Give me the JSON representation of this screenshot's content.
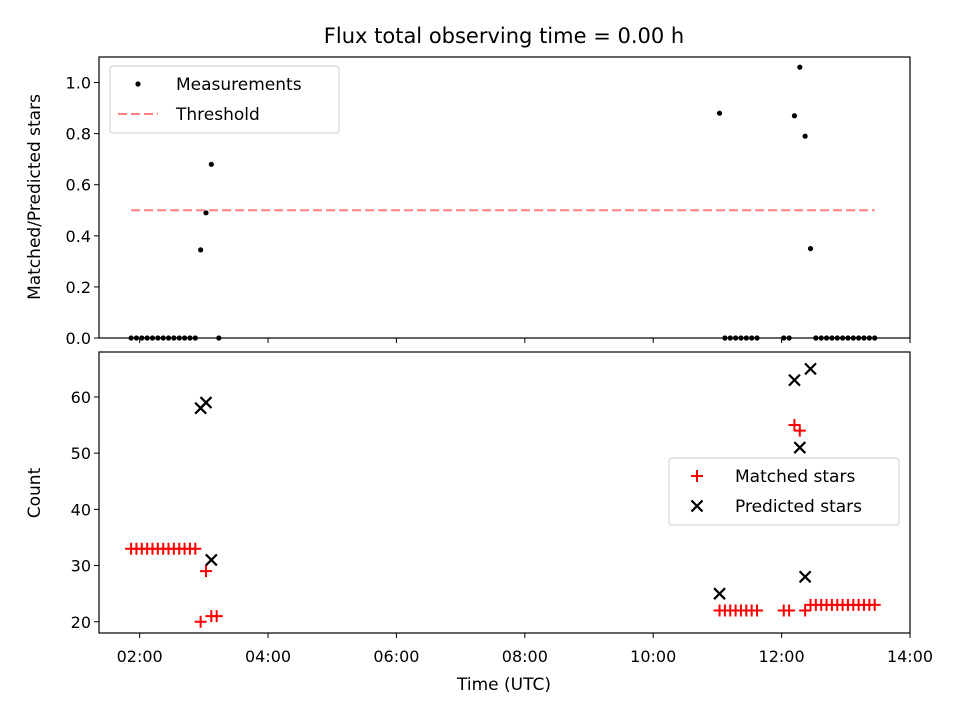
{
  "figure": {
    "title": "Flux total observing time = 0.00 h"
  },
  "chart_data": [
    {
      "type": "scatter",
      "panel": "top",
      "title": "Flux total observing time = 0.00 h",
      "xlabel": "",
      "ylabel": "Matched/Predicted stars",
      "xlim": [
        "01:22",
        "14:00"
      ],
      "ylim": [
        0,
        1.1
      ],
      "x_tick_labels": [],
      "y_ticks": [
        0.0,
        0.2,
        0.4,
        0.6,
        0.8,
        1.0
      ],
      "y_tick_labels": [
        "0.0",
        "0.2",
        "0.4",
        "0.6",
        "0.8",
        "1.0"
      ],
      "legend": {
        "position": "top-left"
      },
      "series": [
        {
          "name": "Measurements",
          "kind": "points",
          "color": "#000000",
          "marker": "dot",
          "points": [
            [
              "01:52",
              0.0
            ],
            [
              "01:57",
              0.0
            ],
            [
              "02:02",
              0.0
            ],
            [
              "02:07",
              0.0
            ],
            [
              "02:12",
              0.0
            ],
            [
              "02:17",
              0.0
            ],
            [
              "02:22",
              0.0
            ],
            [
              "02:27",
              0.0
            ],
            [
              "02:32",
              0.0
            ],
            [
              "02:37",
              0.0
            ],
            [
              "02:42",
              0.0
            ],
            [
              "02:47",
              0.0
            ],
            [
              "02:52",
              0.0
            ],
            [
              "02:57",
              0.345
            ],
            [
              "03:02",
              0.49
            ],
            [
              "03:07",
              0.68
            ],
            [
              "03:14",
              0.0
            ],
            [
              "11:02",
              0.88
            ],
            [
              "11:07",
              0.0
            ],
            [
              "11:12",
              0.0
            ],
            [
              "11:17",
              0.0
            ],
            [
              "11:22",
              0.0
            ],
            [
              "11:27",
              0.0
            ],
            [
              "11:32",
              0.0
            ],
            [
              "11:37",
              0.0
            ],
            [
              "12:02",
              0.0
            ],
            [
              "12:07",
              0.0
            ],
            [
              "12:12",
              0.87
            ],
            [
              "12:17",
              1.06
            ],
            [
              "12:22",
              0.79
            ],
            [
              "12:27",
              0.35
            ],
            [
              "12:32",
              0.0
            ],
            [
              "12:37",
              0.0
            ],
            [
              "12:42",
              0.0
            ],
            [
              "12:47",
              0.0
            ],
            [
              "12:52",
              0.0
            ],
            [
              "12:57",
              0.0
            ],
            [
              "13:02",
              0.0
            ],
            [
              "13:07",
              0.0
            ],
            [
              "13:12",
              0.0
            ],
            [
              "13:17",
              0.0
            ],
            [
              "13:22",
              0.0
            ],
            [
              "13:27",
              0.0
            ]
          ]
        },
        {
          "name": "Threshold",
          "kind": "line",
          "color": "#ff8080",
          "dash": "dashed",
          "points": [
            [
              "01:52",
              0.5
            ],
            [
              "13:27",
              0.5
            ]
          ]
        }
      ]
    },
    {
      "type": "scatter",
      "panel": "bottom",
      "xlabel": "Time (UTC)",
      "ylabel": "Count",
      "xlim": [
        "01:22",
        "14:00"
      ],
      "ylim": [
        18,
        68
      ],
      "x_ticks": [
        "02:00",
        "04:00",
        "06:00",
        "08:00",
        "10:00",
        "12:00",
        "14:00"
      ],
      "x_tick_labels": [
        "02:00",
        "04:00",
        "06:00",
        "08:00",
        "10:00",
        "12:00",
        "14:00"
      ],
      "y_ticks": [
        20,
        30,
        40,
        50,
        60
      ],
      "y_tick_labels": [
        "20",
        "30",
        "40",
        "50",
        "60"
      ],
      "legend": {
        "position": "center-right"
      },
      "series": [
        {
          "name": "Matched stars",
          "kind": "points",
          "color": "#ff0000",
          "marker": "plus",
          "points": [
            [
              "01:52",
              33
            ],
            [
              "01:57",
              33
            ],
            [
              "02:02",
              33
            ],
            [
              "02:07",
              33
            ],
            [
              "02:12",
              33
            ],
            [
              "02:17",
              33
            ],
            [
              "02:22",
              33
            ],
            [
              "02:27",
              33
            ],
            [
              "02:32",
              33
            ],
            [
              "02:37",
              33
            ],
            [
              "02:42",
              33
            ],
            [
              "02:47",
              33
            ],
            [
              "02:52",
              33
            ],
            [
              "02:57",
              20
            ],
            [
              "03:02",
              29
            ],
            [
              "03:07",
              21
            ],
            [
              "03:12",
              21
            ],
            [
              "11:02",
              22
            ],
            [
              "11:07",
              22
            ],
            [
              "11:12",
              22
            ],
            [
              "11:17",
              22
            ],
            [
              "11:22",
              22
            ],
            [
              "11:27",
              22
            ],
            [
              "11:32",
              22
            ],
            [
              "11:37",
              22
            ],
            [
              "12:02",
              22
            ],
            [
              "12:07",
              22
            ],
            [
              "12:12",
              55
            ],
            [
              "12:17",
              54
            ],
            [
              "12:22",
              22
            ],
            [
              "12:27",
              23
            ],
            [
              "12:32",
              23
            ],
            [
              "12:37",
              23
            ],
            [
              "12:42",
              23
            ],
            [
              "12:47",
              23
            ],
            [
              "12:52",
              23
            ],
            [
              "12:57",
              23
            ],
            [
              "13:02",
              23
            ],
            [
              "13:07",
              23
            ],
            [
              "13:12",
              23
            ],
            [
              "13:17",
              23
            ],
            [
              "13:22",
              23
            ],
            [
              "13:27",
              23
            ]
          ]
        },
        {
          "name": "Predicted stars",
          "kind": "points",
          "color": "#000000",
          "marker": "x",
          "points": [
            [
              "02:57",
              58
            ],
            [
              "03:02",
              59
            ],
            [
              "03:07",
              31
            ],
            [
              "11:02",
              25
            ],
            [
              "12:12",
              63
            ],
            [
              "12:17",
              51
            ],
            [
              "12:22",
              28
            ],
            [
              "12:27",
              65
            ]
          ]
        }
      ]
    }
  ]
}
